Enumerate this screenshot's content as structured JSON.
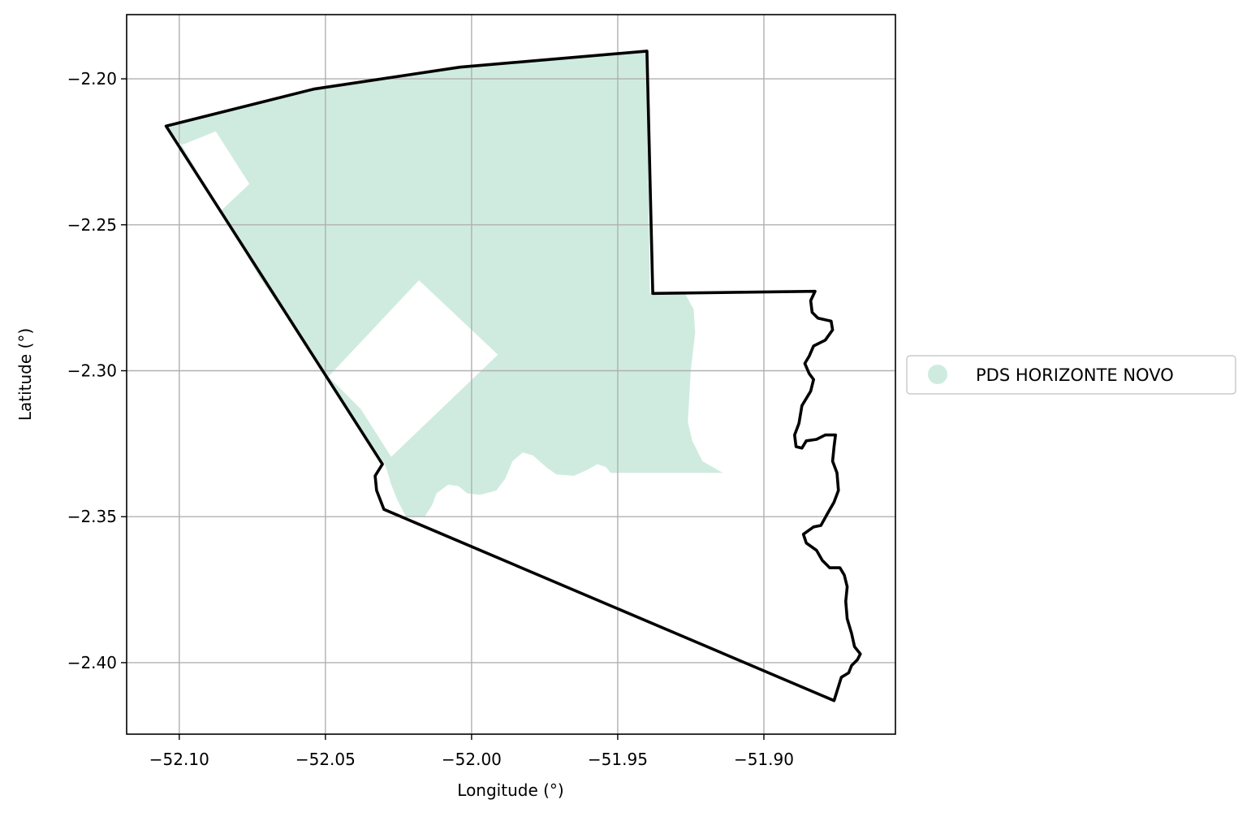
{
  "axes": {
    "xlabel": "Longitude (°)",
    "ylabel": "Latitude (°)",
    "xlim": [
      -52.118,
      -51.855
    ],
    "ylim": [
      -2.4245,
      -2.178
    ],
    "grid": true,
    "xticks": [
      {
        "value": -52.1,
        "label": "−52.10"
      },
      {
        "value": -52.05,
        "label": "−52.05"
      },
      {
        "value": -52.0,
        "label": "−52.00"
      },
      {
        "value": -51.95,
        "label": "−51.95"
      },
      {
        "value": -51.9,
        "label": "−51.90"
      }
    ],
    "yticks": [
      {
        "value": -2.2,
        "label": "−2.20"
      },
      {
        "value": -2.25,
        "label": "−2.25"
      },
      {
        "value": -2.3,
        "label": "−2.30"
      },
      {
        "value": -2.35,
        "label": "−2.35"
      },
      {
        "value": -2.4,
        "label": "−2.40"
      }
    ]
  },
  "legend": {
    "placement": "center-right outside",
    "entries": [
      {
        "label": "PDS HORIZONTE NOVO",
        "color": "#cfebdf",
        "marker": "circle"
      }
    ]
  },
  "colors": {
    "fill": "#cfebdf",
    "boundary": "#000000",
    "grid": "#b0b0b0"
  },
  "map_data": {
    "settlement_area": {
      "name": "PDS HORIZONTE NOVO",
      "outer": [
        [
          -52.1045,
          -2.2162
        ],
        [
          -52.054,
          -2.2035
        ],
        [
          -52.004,
          -2.196
        ],
        [
          -51.94,
          -2.1905
        ],
        [
          -51.939,
          -2.2735
        ],
        [
          -51.927,
          -2.2735
        ],
        [
          -51.924,
          -2.279
        ],
        [
          -51.9235,
          -2.287
        ],
        [
          -51.925,
          -2.3
        ],
        [
          -51.926,
          -2.3175
        ],
        [
          -51.9245,
          -2.324
        ],
        [
          -51.921,
          -2.331
        ],
        [
          -51.914,
          -2.335
        ],
        [
          -51.9525,
          -2.335
        ],
        [
          -51.954,
          -2.333
        ],
        [
          -51.957,
          -2.332
        ],
        [
          -51.9605,
          -2.334
        ],
        [
          -51.965,
          -2.336
        ],
        [
          -51.971,
          -2.3355
        ],
        [
          -51.9745,
          -2.333
        ],
        [
          -51.979,
          -2.329
        ],
        [
          -51.9825,
          -2.328
        ],
        [
          -51.986,
          -2.331
        ],
        [
          -51.9885,
          -2.337
        ],
        [
          -51.9915,
          -2.341
        ],
        [
          -51.997,
          -2.3425
        ],
        [
          -52.0015,
          -2.342
        ],
        [
          -52.0045,
          -2.3395
        ],
        [
          -52.008,
          -2.339
        ],
        [
          -52.012,
          -2.342
        ],
        [
          -52.0135,
          -2.346
        ],
        [
          -52.016,
          -2.35
        ],
        [
          -52.0225,
          -2.35
        ],
        [
          -52.0255,
          -2.344
        ],
        [
          -52.0275,
          -2.339
        ],
        [
          -52.029,
          -2.334
        ],
        [
          -52.03,
          -2.3315
        ],
        [
          -52.0575,
          -2.29
        ],
        [
          -52.0725,
          -2.268
        ],
        [
          -52.083,
          -2.25
        ],
        [
          -52.099,
          -2.223
        ]
      ],
      "holes": [
        [
          [
            -52.1,
            -2.223
          ],
          [
            -52.0875,
            -2.218
          ],
          [
            -52.076,
            -2.236
          ],
          [
            -52.0855,
            -2.245
          ],
          [
            -52.093,
            -2.233
          ]
        ],
        [
          [
            -52.049,
            -2.302
          ],
          [
            -52.018,
            -2.269
          ],
          [
            -51.991,
            -2.2945
          ],
          [
            -52.0275,
            -2.3295
          ],
          [
            -52.038,
            -2.313
          ]
        ]
      ]
    },
    "municipality_boundary": [
      [
        -52.1045,
        -2.2162
      ],
      [
        -52.054,
        -2.2035
      ],
      [
        -52.004,
        -2.196
      ],
      [
        -51.94,
        -2.1905
      ],
      [
        -51.938,
        -2.2735
      ],
      [
        -51.8825,
        -2.2728
      ],
      [
        -51.884,
        -2.276
      ],
      [
        -51.8835,
        -2.28
      ],
      [
        -51.8815,
        -2.282
      ],
      [
        -51.877,
        -2.283
      ],
      [
        -51.8765,
        -2.286
      ],
      [
        -51.879,
        -2.2895
      ],
      [
        -51.883,
        -2.2915
      ],
      [
        -51.8845,
        -2.295
      ],
      [
        -51.886,
        -2.2975
      ],
      [
        -51.8845,
        -2.301
      ],
      [
        -51.883,
        -2.303
      ],
      [
        -51.884,
        -2.307
      ],
      [
        -51.887,
        -2.312
      ],
      [
        -51.888,
        -2.318
      ],
      [
        -51.8895,
        -2.322
      ],
      [
        -51.889,
        -2.326
      ],
      [
        -51.887,
        -2.3265
      ],
      [
        -51.8855,
        -2.324
      ],
      [
        -51.882,
        -2.3235
      ],
      [
        -51.879,
        -2.322
      ],
      [
        -51.8755,
        -2.322
      ],
      [
        -51.876,
        -2.326
      ],
      [
        -51.8765,
        -2.331
      ],
      [
        -51.875,
        -2.335
      ],
      [
        -51.8745,
        -2.341
      ],
      [
        -51.876,
        -2.345
      ],
      [
        -51.878,
        -2.3485
      ],
      [
        -51.8805,
        -2.353
      ],
      [
        -51.883,
        -2.3535
      ],
      [
        -51.8865,
        -2.356
      ],
      [
        -51.8855,
        -2.359
      ],
      [
        -51.882,
        -2.3615
      ],
      [
        -51.88,
        -2.365
      ],
      [
        -51.8775,
        -2.3675
      ],
      [
        -51.874,
        -2.3675
      ],
      [
        -51.8725,
        -2.37
      ],
      [
        -51.8715,
        -2.374
      ],
      [
        -51.872,
        -2.379
      ],
      [
        -51.8715,
        -2.385
      ],
      [
        -51.87,
        -2.39
      ],
      [
        -51.869,
        -2.3945
      ],
      [
        -51.867,
        -2.397
      ],
      [
        -51.868,
        -2.399
      ],
      [
        -51.87,
        -2.401
      ],
      [
        -51.871,
        -2.4035
      ],
      [
        -51.8735,
        -2.405
      ],
      [
        -51.876,
        -2.413
      ],
      [
        -52.03,
        -2.3475
      ],
      [
        -52.0325,
        -2.341
      ],
      [
        -52.033,
        -2.336
      ],
      [
        -52.0305,
        -2.332
      ]
    ]
  }
}
